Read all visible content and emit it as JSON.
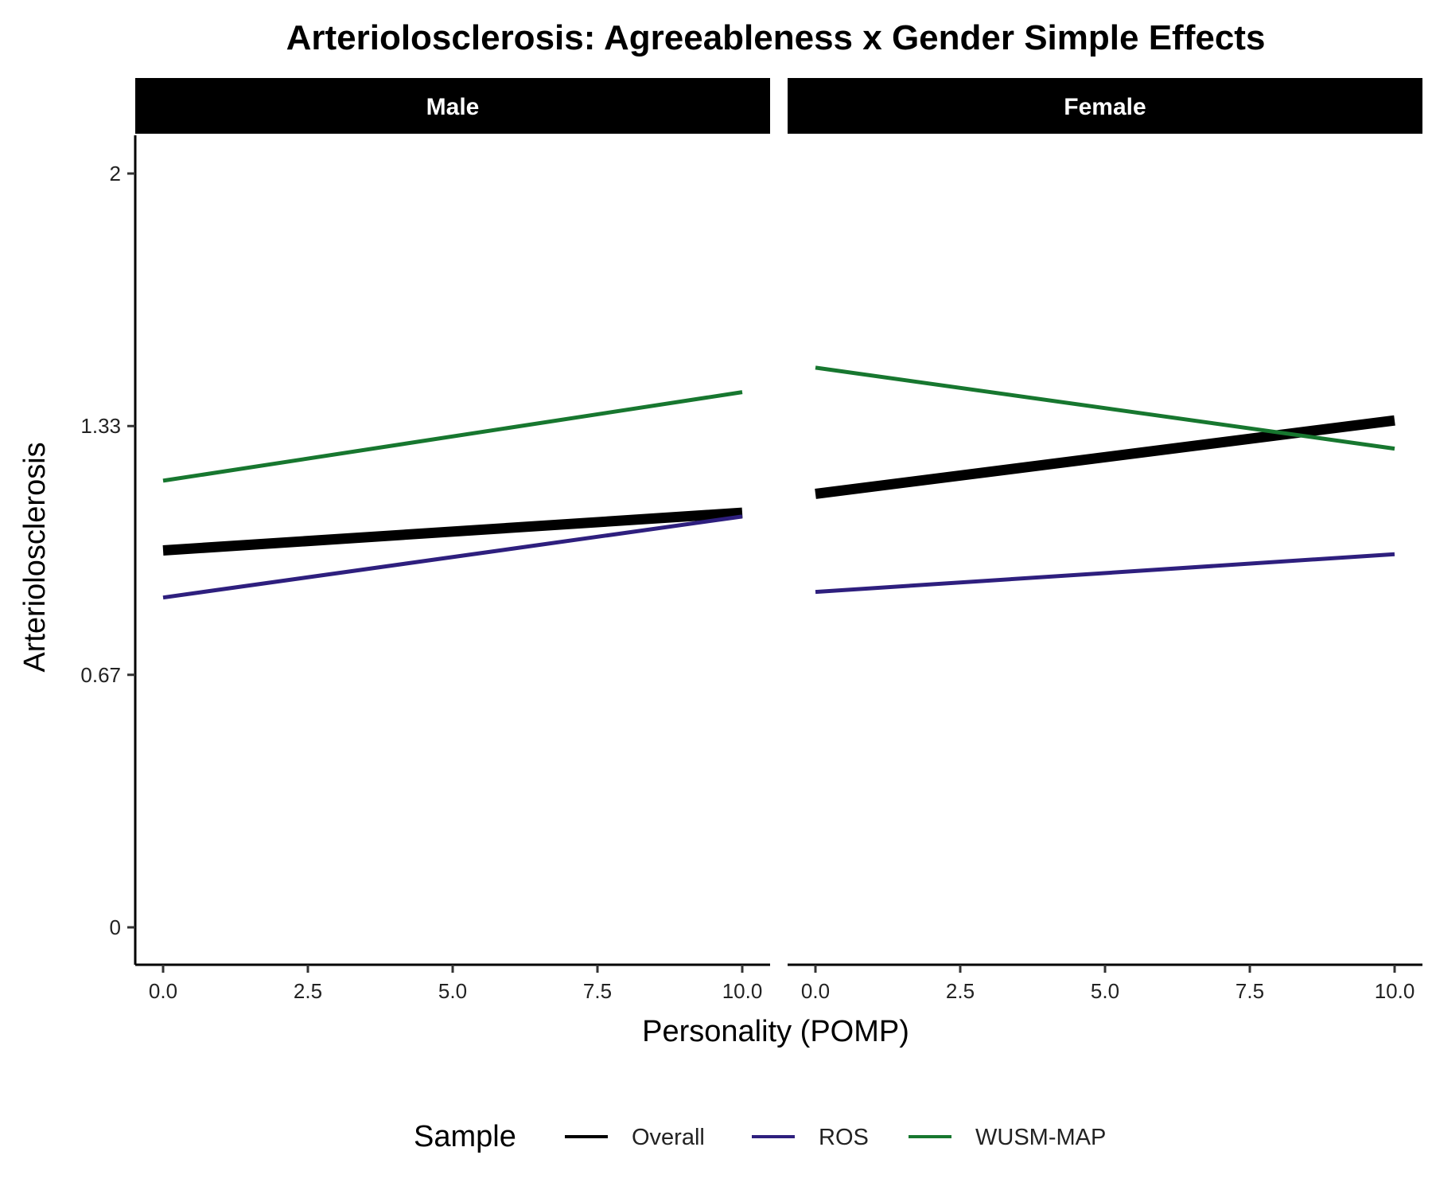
{
  "chart_data": {
    "type": "line",
    "title": "Arteriolosclerosis: Agreeableness x Gender Simple Effects",
    "xlabel": "Personality (POMP)",
    "ylabel": "Arteriolosclerosis",
    "xlim": [
      0,
      10
    ],
    "ylim": [
      0,
      2
    ],
    "x_ticks": [
      0,
      2.5,
      5,
      7.5,
      10
    ],
    "x_tick_labels": [
      "0.0",
      "2.5",
      "5.0",
      "7.5",
      "10.0"
    ],
    "y_ticks": [
      0,
      0.67,
      1.33,
      2
    ],
    "y_tick_labels": [
      "0",
      "0.67",
      "1.33",
      "2"
    ],
    "grid": false,
    "legend": {
      "title": "Sample",
      "placement": "bottom",
      "entries": [
        "Overall",
        "ROS",
        "WUSM-MAP"
      ]
    },
    "panels": [
      {
        "label": "Male",
        "series": [
          {
            "name": "Overall",
            "color": "#000000",
            "x": [
              0,
              10
            ],
            "y": [
              1.0,
              1.1
            ]
          },
          {
            "name": "ROS",
            "color": "#2e1f7e",
            "x": [
              0,
              10
            ],
            "y": [
              0.875,
              1.09
            ]
          },
          {
            "name": "WUSM-MAP",
            "color": "#17772f",
            "x": [
              0,
              10
            ],
            "y": [
              1.185,
              1.42
            ]
          }
        ]
      },
      {
        "label": "Female",
        "series": [
          {
            "name": "Overall",
            "color": "#000000",
            "x": [
              0,
              10
            ],
            "y": [
              1.15,
              1.345
            ]
          },
          {
            "name": "ROS",
            "color": "#2e1f7e",
            "x": [
              0,
              10
            ],
            "y": [
              0.89,
              0.99
            ]
          },
          {
            "name": "WUSM-MAP",
            "color": "#17772f",
            "x": [
              0,
              10
            ],
            "y": [
              1.485,
              1.27
            ]
          }
        ]
      }
    ]
  }
}
